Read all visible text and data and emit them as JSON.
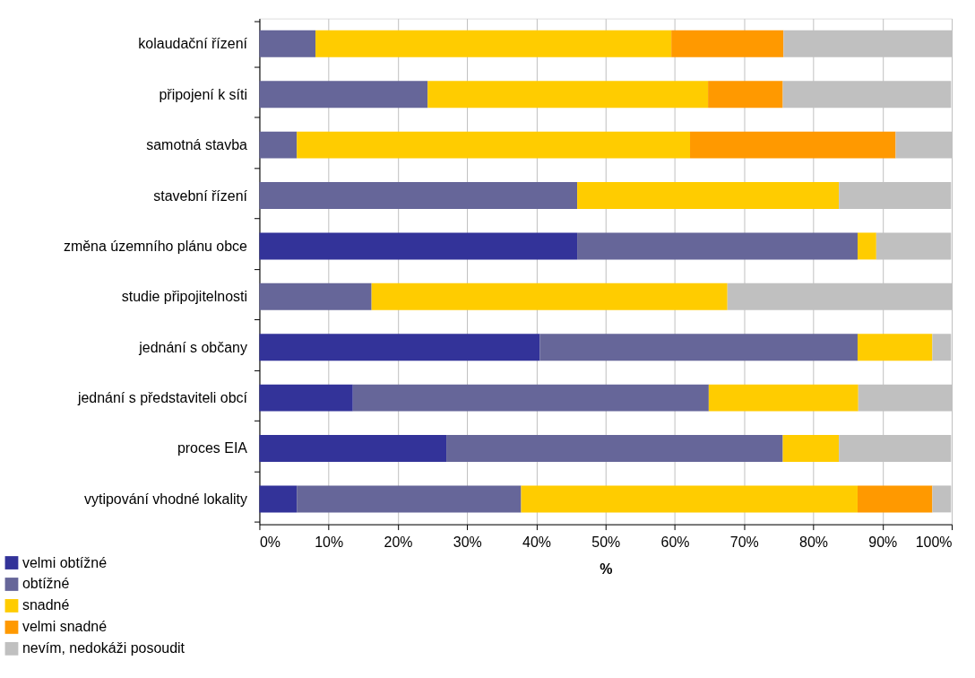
{
  "chart_data": {
    "type": "bar",
    "orientation": "horizontal",
    "stacked": true,
    "xlabel": "%",
    "categories": [
      "kolaudační řízení",
      "připojení k síti",
      "samotná stavba",
      "stavební řízení",
      "změna územního plánu obce",
      "studie připojitelnosti",
      "jednání s občany",
      "jednání s představiteli obcí",
      "proces EIA",
      "vytipování vhodné lokality"
    ],
    "series": [
      {
        "name": "velmi obtížné",
        "color": "#333399",
        "values": [
          null,
          null,
          null,
          null,
          45.9,
          null,
          40.5,
          13.5,
          27.0,
          5.4
        ]
      },
      {
        "name": "obtížné",
        "color": "#666699",
        "values": [
          8.1,
          24.3,
          5.4,
          45.9,
          40.5,
          16.2,
          45.9,
          51.4,
          48.6,
          32.4
        ]
      },
      {
        "name": "snadné",
        "color": "#ffcc00",
        "values": [
          51.4,
          40.5,
          56.8,
          37.8,
          2.7,
          51.4,
          10.8,
          21.6,
          8.1,
          48.6
        ]
      },
      {
        "name": "velmi snadné",
        "color": "#ff9900",
        "values": [
          16.2,
          10.8,
          29.7,
          null,
          null,
          null,
          null,
          null,
          null,
          10.8
        ]
      },
      {
        "name": "nevím, nedokáži posoudit",
        "color": "#c0c0c0",
        "values": [
          24.3,
          24.3,
          8.1,
          16.2,
          10.8,
          32.4,
          2.7,
          13.5,
          16.2,
          2.7
        ]
      }
    ],
    "xlim": [
      0,
      100
    ],
    "xticks": [
      {
        "value": 0,
        "label": "0%"
      },
      {
        "value": 10,
        "label": "10%"
      },
      {
        "value": 20,
        "label": "20%"
      },
      {
        "value": 30,
        "label": "30%"
      },
      {
        "value": 40,
        "label": "40%"
      },
      {
        "value": 50,
        "label": "50%"
      },
      {
        "value": 60,
        "label": "60%"
      },
      {
        "value": 70,
        "label": "70%"
      },
      {
        "value": 80,
        "label": "80%"
      },
      {
        "value": 90,
        "label": "90%"
      },
      {
        "value": 100,
        "label": "100%"
      }
    ],
    "grid": "x",
    "legend": "bottom left"
  }
}
